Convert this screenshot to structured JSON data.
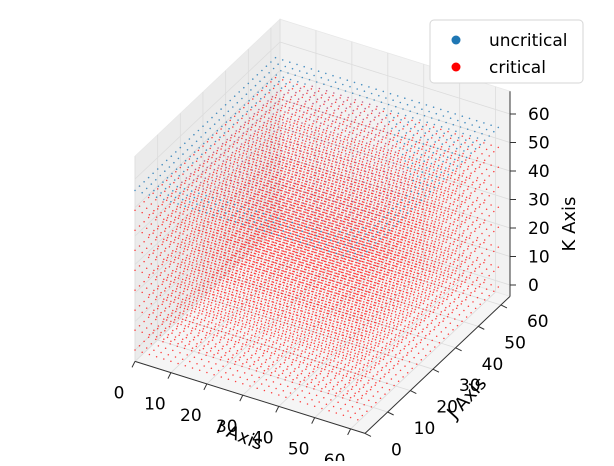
{
  "chart_data": {
    "type": "scatter",
    "projection": "3d",
    "title": "",
    "xlabel": "I Axis",
    "ylabel": "J Axis",
    "zlabel": "K Axis",
    "xlim": [
      0,
      64
    ],
    "ylim": [
      0,
      64
    ],
    "zlim": [
      0,
      64
    ],
    "xticks": [
      "0",
      "10",
      "20",
      "30",
      "40",
      "50",
      "60"
    ],
    "yticks": [
      "0",
      "10",
      "20",
      "30",
      "40",
      "50",
      "60"
    ],
    "zticks": [
      "0",
      "10",
      "20",
      "30",
      "40",
      "50",
      "60"
    ],
    "grid": true,
    "legend_position": "top-right",
    "grid_size": 64,
    "series": [
      {
        "name": "uncritical",
        "color": "#1f77b4",
        "layers_k": [
          56
        ],
        "region": "full plane at top layer"
      },
      {
        "name": "critical",
        "color": "#ff0000",
        "layers_k": [
          0,
          7,
          14,
          21,
          28,
          35,
          42,
          49,
          56
        ],
        "region": "layers below top plus lower interior of top layer"
      }
    ]
  }
}
